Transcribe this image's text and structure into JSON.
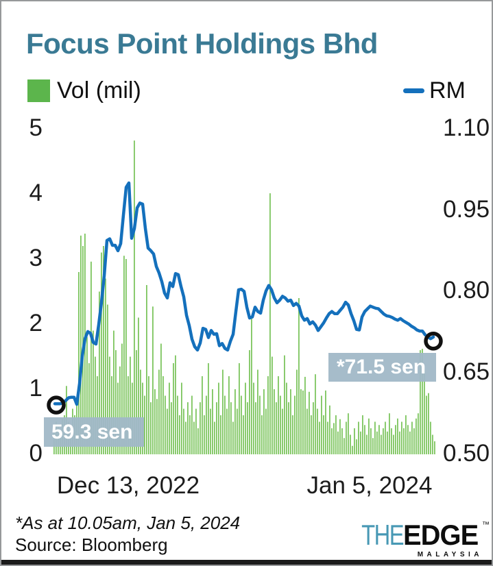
{
  "page": {
    "background": "#ffffff",
    "border_color": "#96989a",
    "bottom_bar_color": "#1b1b1b"
  },
  "footer": {
    "footnote": "*As at 10.05am, Jan 5, 2024",
    "source": "Source: Bloomberg"
  },
  "logo": {
    "the": "THE",
    "edge": "EDGE",
    "trademark": "™",
    "region": "MALAYSIA"
  },
  "chart_data": {
    "type": "bar+line",
    "title": "Focus Point Holdings Bhd",
    "title_color": "#3a7a94",
    "grid": false,
    "legend_position": "top",
    "x_axis": {
      "start": "Dec 13, 2022",
      "end": "Jan 5, 2024",
      "labels": [
        "Dec 13, 2022",
        "Jan 5, 2024"
      ]
    },
    "left_axis": {
      "label": "Vol (mil)",
      "range": [
        0,
        5
      ],
      "ticks": [
        "5",
        "4",
        "3",
        "2",
        "1",
        "0"
      ]
    },
    "right_axis": {
      "label": "RM",
      "range": [
        0.5,
        1.1
      ],
      "ticks": [
        "1.10",
        "0.95",
        "0.80",
        "0.65",
        "0.50"
      ]
    },
    "annotations": [
      {
        "text": "59.3 sen",
        "value_sen": 59.3,
        "position": "start",
        "bg": "#a1b8c7",
        "text_color": "#ffffff"
      },
      {
        "text": "*71.5 sen",
        "value_sen": 71.5,
        "position": "end",
        "bg": "#a1b8c7",
        "text_color": "#ffffff"
      }
    ],
    "series": [
      {
        "name": "Vol (mil)",
        "type": "bar",
        "axis": "left",
        "color": "#7dc55e",
        "swatch_color": "#5cb54c",
        "values": [
          0.35,
          0.5,
          0.42,
          0.3,
          0.55,
          0.6,
          1.05,
          0.5,
          0.45,
          0.7,
          0.6,
          0.8,
          2.8,
          3.36,
          3.2,
          3.39,
          1.8,
          1.4,
          2.96,
          1.9,
          1.5,
          1.2,
          2.5,
          3.1,
          3.2,
          2.7,
          2.3,
          1.5,
          1.2,
          1.9,
          1.6,
          1.1,
          1.35,
          1.7,
          3.05,
          3.0,
          1.2,
          1.5,
          1.1,
          4.82,
          1.6,
          2.1,
          1.3,
          1.1,
          0.9,
          2.6,
          1.2,
          0.8,
          2.27,
          1.0,
          0.85,
          1.3,
          1.7,
          1.2,
          0.9,
          0.7,
          1.1,
          0.8,
          1.4,
          1.52,
          0.9,
          0.6,
          1.1,
          0.7,
          0.5,
          0.8,
          0.6,
          0.9,
          0.5,
          0.7,
          0.4,
          0.8,
          1.2,
          0.6,
          0.9,
          1.4,
          0.7,
          1.0,
          0.5,
          0.8,
          1.1,
          0.6,
          1.3,
          0.9,
          0.7,
          1.2,
          0.8,
          0.5,
          1.0,
          0.7,
          1.4,
          0.9,
          0.6,
          1.1,
          0.8,
          1.6,
          2.08,
          1.1,
          0.8,
          1.3,
          0.9,
          0.6,
          1.0,
          0.7,
          1.2,
          4.01,
          1.5,
          1.0,
          0.8,
          1.2,
          0.9,
          0.7,
          1.52,
          1.1,
          0.8,
          1.0,
          0.6,
          0.9,
          1.3,
          2.4,
          1.0,
          0.98,
          1.19,
          0.7,
          0.96,
          0.6,
          0.8,
          1.23,
          0.7,
          0.5,
          0.9,
          0.6,
          0.98,
          0.5,
          0.75,
          0.4,
          0.48,
          0.6,
          0.35,
          0.54,
          0.4,
          0.25,
          0.5,
          0.63,
          0.3,
          0.13,
          0.4,
          0.23,
          0.5,
          0.35,
          0.6,
          0.45,
          0.3,
          0.55,
          0.4,
          0.25,
          0.5,
          0.35,
          0.45,
          0.3,
          0.4,
          0.5,
          0.35,
          0.63,
          0.4,
          0.3,
          0.45,
          0.55,
          0.35,
          0.5,
          0.4,
          0.6,
          0.45,
          0.35,
          0.5,
          0.4,
          0.55,
          0.63,
          1.6,
          1.62,
          1.3,
          0.9,
          0.94,
          0.5,
          0.3,
          0.2
        ]
      },
      {
        "name": "RM",
        "type": "line",
        "axis": "right",
        "color": "#1470bc",
        "start_value_rm": 0.593,
        "end_value_rm": 0.715,
        "values": [
          0.592,
          0.592,
          0.592,
          0.594,
          0.598,
          0.603,
          0.604,
          0.604,
          0.591,
          0.629,
          0.68,
          0.712,
          0.725,
          0.722,
          0.705,
          0.702,
          0.738,
          0.779,
          0.828,
          0.893,
          0.896,
          0.884,
          0.884,
          0.874,
          0.887,
          0.94,
          0.991,
          0.999,
          0.897,
          0.915,
          0.953,
          0.962,
          0.96,
          0.915,
          0.879,
          0.874,
          0.868,
          0.845,
          0.833,
          0.817,
          0.796,
          0.787,
          0.815,
          0.808,
          0.832,
          0.83,
          0.808,
          0.789,
          0.755,
          0.736,
          0.711,
          0.697,
          0.691,
          0.704,
          0.731,
          0.729,
          0.714,
          0.727,
          0.72,
          0.721,
          0.699,
          0.703,
          0.694,
          0.691,
          0.707,
          0.72,
          0.762,
          0.802,
          0.803,
          0.799,
          0.77,
          0.75,
          0.752,
          0.77,
          0.762,
          0.759,
          0.783,
          0.8,
          0.81,
          0.802,
          0.787,
          0.778,
          0.783,
          0.79,
          0.787,
          0.781,
          0.783,
          0.773,
          0.777,
          0.772,
          0.754,
          0.746,
          0.749,
          0.739,
          0.743,
          0.737,
          0.727,
          0.734,
          0.741,
          0.75,
          0.758,
          0.762,
          0.758,
          0.758,
          0.764,
          0.77,
          0.779,
          0.774,
          0.758,
          0.745,
          0.729,
          0.728,
          0.752,
          0.762,
          0.767,
          0.772,
          0.77,
          0.768,
          0.767,
          0.762,
          0.757,
          0.754,
          0.753,
          0.751,
          0.748,
          0.746,
          0.749,
          0.745,
          0.742,
          0.739,
          0.735,
          0.732,
          0.728,
          0.726,
          0.726,
          0.719,
          0.715,
          0.712,
          0.715
        ]
      }
    ]
  }
}
